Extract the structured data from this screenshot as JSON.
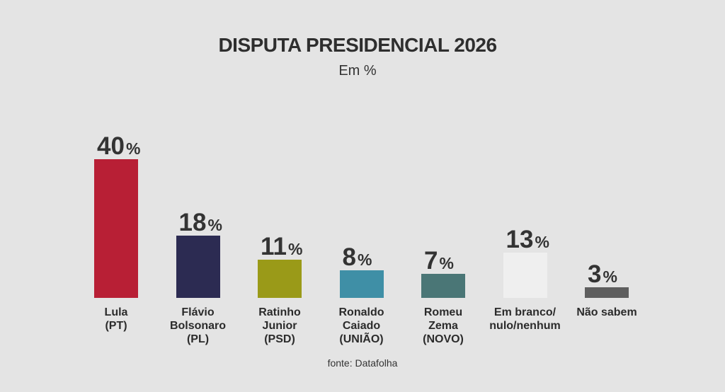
{
  "chart_data": {
    "type": "bar",
    "title": "DISPUTA PRESIDENCIAL 2026",
    "subtitle": "Em %",
    "source": "fonte: Datafolha",
    "unit": "%",
    "ylim": [
      0,
      40
    ],
    "grid": false,
    "legend": "none",
    "categories": [
      [
        "Lula",
        "(PT)"
      ],
      [
        "Flávio",
        "Bolsonaro",
        "(PL)"
      ],
      [
        "Ratinho",
        "Junior",
        "(PSD)"
      ],
      [
        "Ronaldo",
        "Caiado",
        "(UNIÃO)"
      ],
      [
        "Romeu",
        "Zema",
        "(NOVO)"
      ],
      [
        "Em branco/",
        "nulo/nenhum"
      ],
      [
        "Não sabem"
      ]
    ],
    "values": [
      40,
      18,
      11,
      8,
      7,
      13,
      3
    ],
    "colors": [
      "#b81f35",
      "#2c2b52",
      "#9a9a18",
      "#3f8fa6",
      "#4a7676",
      "#efefef",
      "#5e5e5e"
    ]
  }
}
